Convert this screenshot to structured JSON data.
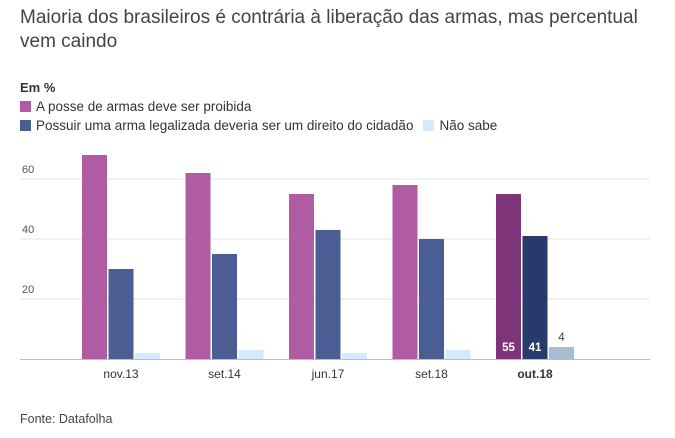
{
  "title": "Maioria dos brasileiros é contrária à liberação das armas, mas percentual vem caindo",
  "source": "Fonte: Datafolha",
  "chart_data": {
    "type": "bar",
    "subtitle": "Em %",
    "categories": [
      "nov.13",
      "set.14",
      "jun.17",
      "set.18",
      "out.18"
    ],
    "series": [
      {
        "name": "A posse de armas deve ser proibida",
        "values": [
          68,
          62,
          55,
          58,
          55
        ],
        "color": "#b05ca4",
        "highlight_color": "#7d3478"
      },
      {
        "name": "Possuir uma arma legalizada deveria ser um direito do cidadão",
        "values": [
          30,
          35,
          43,
          40,
          41
        ],
        "color": "#4b5e94",
        "highlight_color": "#263a6b"
      },
      {
        "name": "Não sabe",
        "values": [
          2,
          3,
          2,
          3,
          4
        ],
        "color": "#d6e8fb",
        "highlight_color": "#a9bcd6"
      }
    ],
    "highlight_category": "out.18",
    "highlight_labels": [
      "55",
      "41",
      "4"
    ],
    "yticks": [
      "20",
      "40",
      "60"
    ],
    "ylim": [
      0,
      70
    ],
    "grid": true,
    "legend_position": "top"
  }
}
